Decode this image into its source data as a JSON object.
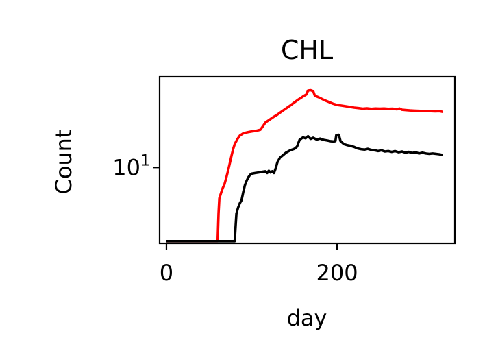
{
  "chart_data": {
    "type": "line",
    "title": "CHL",
    "xlabel": "day",
    "ylabel": "Count",
    "yscale": "log",
    "xlim": [
      -8,
      338
    ],
    "ylim": [
      2.4,
      55
    ],
    "grid": false,
    "x_ticks": [
      {
        "value": 0,
        "label": "0"
      },
      {
        "value": 200,
        "label": "200"
      }
    ],
    "y_ticks": [
      {
        "value": 10,
        "base": "10",
        "exp": "1"
      }
    ],
    "series": [
      {
        "color": "#ff0000",
        "points": [
          [
            0,
            2.5
          ],
          [
            60,
            2.5
          ],
          [
            61,
            4.2
          ],
          [
            62,
            5.6
          ],
          [
            64,
            6.2
          ],
          [
            66,
            6.8
          ],
          [
            68,
            7.3
          ],
          [
            70,
            8.2
          ],
          [
            72,
            9.3
          ],
          [
            74,
            10.6
          ],
          [
            76,
            12.2
          ],
          [
            78,
            14.0
          ],
          [
            80,
            15.5
          ],
          [
            83,
            17.0
          ],
          [
            86,
            18.2
          ],
          [
            90,
            19.0
          ],
          [
            95,
            19.4
          ],
          [
            100,
            19.7
          ],
          [
            105,
            19.9
          ],
          [
            110,
            20.3
          ],
          [
            113,
            21.7
          ],
          [
            116,
            23.3
          ],
          [
            120,
            24.3
          ],
          [
            125,
            25.7
          ],
          [
            130,
            27.0
          ],
          [
            135,
            28.6
          ],
          [
            140,
            30.3
          ],
          [
            145,
            32.0
          ],
          [
            150,
            34.0
          ],
          [
            155,
            36.0
          ],
          [
            160,
            38.0
          ],
          [
            164,
            39.5
          ],
          [
            166,
            42.5
          ],
          [
            169,
            42.8
          ],
          [
            172,
            42.0
          ],
          [
            174,
            38.5
          ],
          [
            178,
            37.5
          ],
          [
            182,
            36.3
          ],
          [
            186,
            35.2
          ],
          [
            190,
            34.3
          ],
          [
            195,
            33.2
          ],
          [
            200,
            32.4
          ],
          [
            205,
            32.0
          ],
          [
            210,
            31.6
          ],
          [
            215,
            31.2
          ],
          [
            220,
            30.8
          ],
          [
            225,
            30.5
          ],
          [
            230,
            30.2
          ],
          [
            235,
            30.4
          ],
          [
            240,
            30.1
          ],
          [
            245,
            30.3
          ],
          [
            250,
            30.2
          ],
          [
            255,
            30.3
          ],
          [
            260,
            30.1
          ],
          [
            265,
            30.2
          ],
          [
            270,
            29.8
          ],
          [
            273,
            30.3
          ],
          [
            276,
            29.6
          ],
          [
            280,
            29.4
          ],
          [
            285,
            29.2
          ],
          [
            290,
            29.1
          ],
          [
            295,
            29.0
          ],
          [
            300,
            28.9
          ],
          [
            305,
            28.8
          ],
          [
            310,
            28.8
          ],
          [
            315,
            28.7
          ],
          [
            320,
            28.8
          ],
          [
            324,
            28.4
          ]
        ]
      },
      {
        "color": "#000000",
        "points": [
          [
            0,
            2.5
          ],
          [
            80,
            2.5
          ],
          [
            81,
            3.3
          ],
          [
            82,
            4.2
          ],
          [
            84,
            4.7
          ],
          [
            86,
            5.1
          ],
          [
            88,
            5.4
          ],
          [
            90,
            6.3
          ],
          [
            92,
            7.2
          ],
          [
            94,
            7.8
          ],
          [
            96,
            8.3
          ],
          [
            98,
            8.7
          ],
          [
            100,
            8.9
          ],
          [
            104,
            9.0
          ],
          [
            108,
            9.1
          ],
          [
            112,
            9.2
          ],
          [
            116,
            9.3
          ],
          [
            118,
            9.0
          ],
          [
            120,
            9.4
          ],
          [
            122,
            9.1
          ],
          [
            124,
            9.3
          ],
          [
            126,
            9.0
          ],
          [
            128,
            9.8
          ],
          [
            130,
            11.0
          ],
          [
            133,
            12.0
          ],
          [
            136,
            12.5
          ],
          [
            140,
            13.2
          ],
          [
            145,
            13.8
          ],
          [
            150,
            14.2
          ],
          [
            153,
            14.8
          ],
          [
            156,
            16.8
          ],
          [
            160,
            17.6
          ],
          [
            163,
            17.3
          ],
          [
            166,
            18.0
          ],
          [
            169,
            17.1
          ],
          [
            172,
            17.5
          ],
          [
            176,
            16.9
          ],
          [
            180,
            17.2
          ],
          [
            184,
            16.8
          ],
          [
            188,
            16.6
          ],
          [
            192,
            16.4
          ],
          [
            196,
            16.3
          ],
          [
            198,
            16.4
          ],
          [
            199,
            18.4
          ],
          [
            202,
            18.5
          ],
          [
            204,
            16.4
          ],
          [
            208,
            15.5
          ],
          [
            212,
            15.2
          ],
          [
            216,
            15.0
          ],
          [
            220,
            14.7
          ],
          [
            224,
            14.3
          ],
          [
            228,
            14.1
          ],
          [
            232,
            14.0
          ],
          [
            236,
            14.2
          ],
          [
            240,
            13.9
          ],
          [
            244,
            13.8
          ],
          [
            248,
            13.6
          ],
          [
            252,
            13.8
          ],
          [
            256,
            13.5
          ],
          [
            260,
            13.6
          ],
          [
            264,
            13.4
          ],
          [
            268,
            13.6
          ],
          [
            272,
            13.3
          ],
          [
            276,
            13.5
          ],
          [
            280,
            13.2
          ],
          [
            284,
            13.4
          ],
          [
            288,
            13.1
          ],
          [
            292,
            13.3
          ],
          [
            296,
            13.0
          ],
          [
            300,
            13.2
          ],
          [
            304,
            13.0
          ],
          [
            308,
            12.9
          ],
          [
            312,
            13.0
          ],
          [
            316,
            12.9
          ],
          [
            320,
            12.8
          ],
          [
            324,
            12.6
          ]
        ]
      }
    ]
  }
}
